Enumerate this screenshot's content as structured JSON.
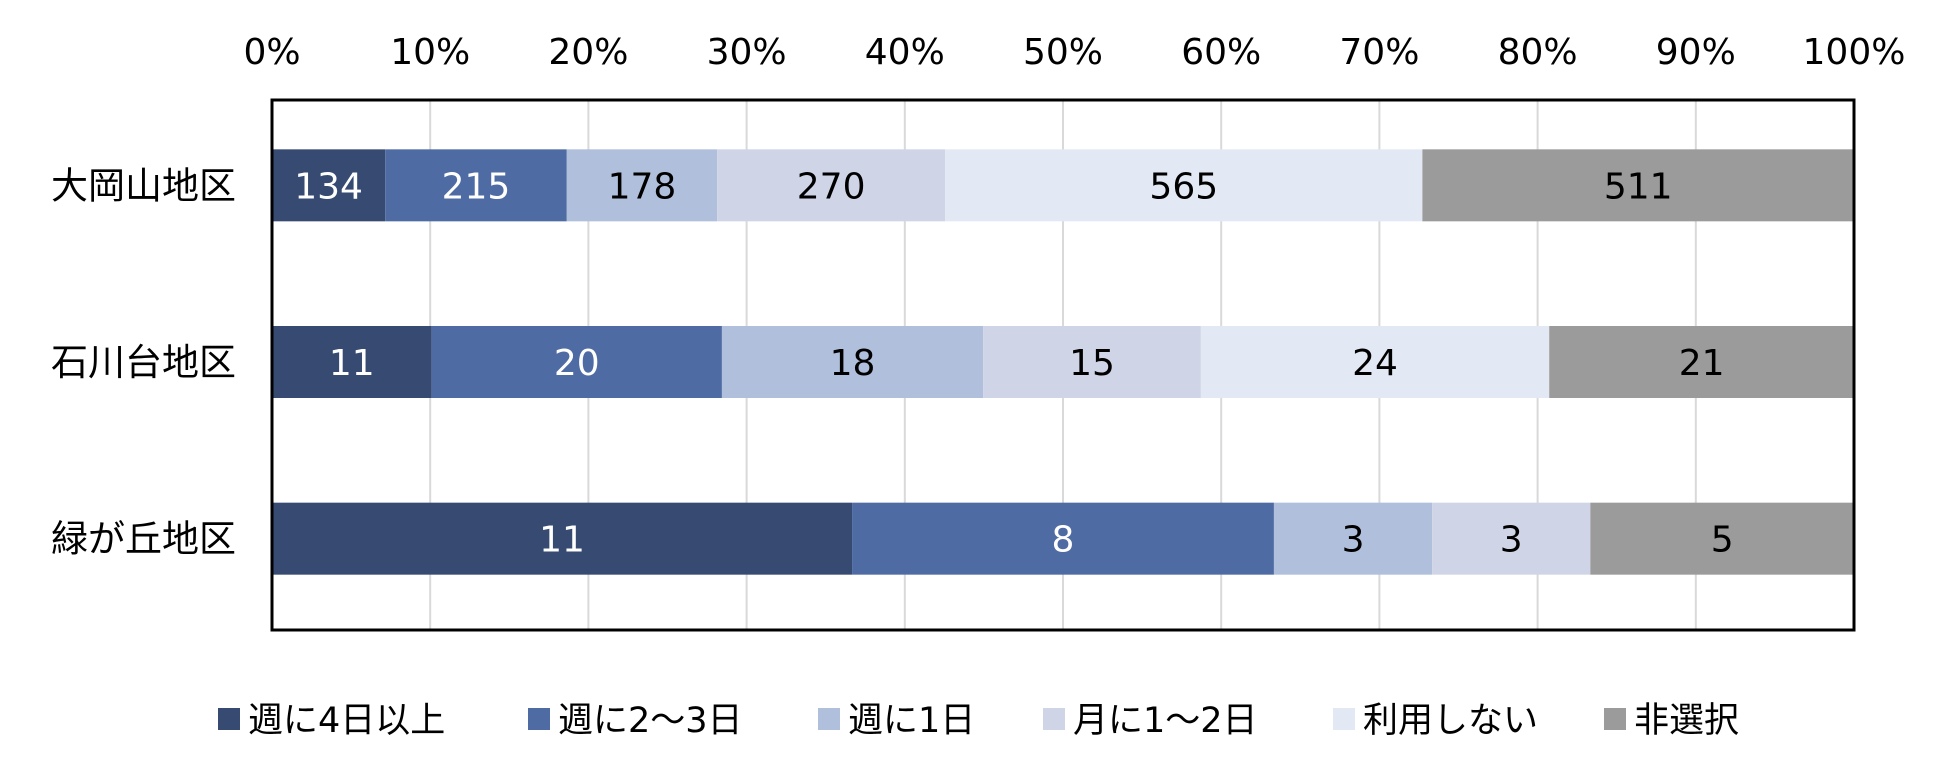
{
  "chart_data": {
    "type": "bar",
    "orientation": "horizontal",
    "stacked": "percent",
    "categories": [
      "大岡山地区",
      "石川台地区",
      "緑が丘地区"
    ],
    "series": [
      {
        "name": "週に4日以上",
        "values": [
          134,
          11,
          11
        ],
        "color": "#364a72",
        "label_color": "#ffffff"
      },
      {
        "name": "週に2～3日",
        "values": [
          215,
          20,
          8
        ],
        "color": "#4f6ba3",
        "label_color": "#ffffff"
      },
      {
        "name": "週に1日",
        "values": [
          178,
          18,
          3
        ],
        "color": "#b0bfdb",
        "label_color": "#000000"
      },
      {
        "name": "月に1～2日",
        "values": [
          270,
          15,
          3
        ],
        "color": "#cfd5e6",
        "label_color": "#000000"
      },
      {
        "name": "利用しない",
        "values": [
          565,
          24,
          0
        ],
        "color": "#e3e9f4",
        "label_color": "#000000"
      },
      {
        "name": "非選択",
        "values": [
          511,
          21,
          5
        ],
        "color": "#9b9b9b",
        "label_color": "#000000"
      }
    ],
    "x_ticks": [
      "0%",
      "10%",
      "20%",
      "30%",
      "40%",
      "50%",
      "60%",
      "70%",
      "80%",
      "90%",
      "100%"
    ],
    "xlim": [
      0,
      100
    ],
    "x_axis_position": "top",
    "grid": true,
    "legend_position": "bottom",
    "title": "",
    "xlabel": "",
    "ylabel": ""
  }
}
